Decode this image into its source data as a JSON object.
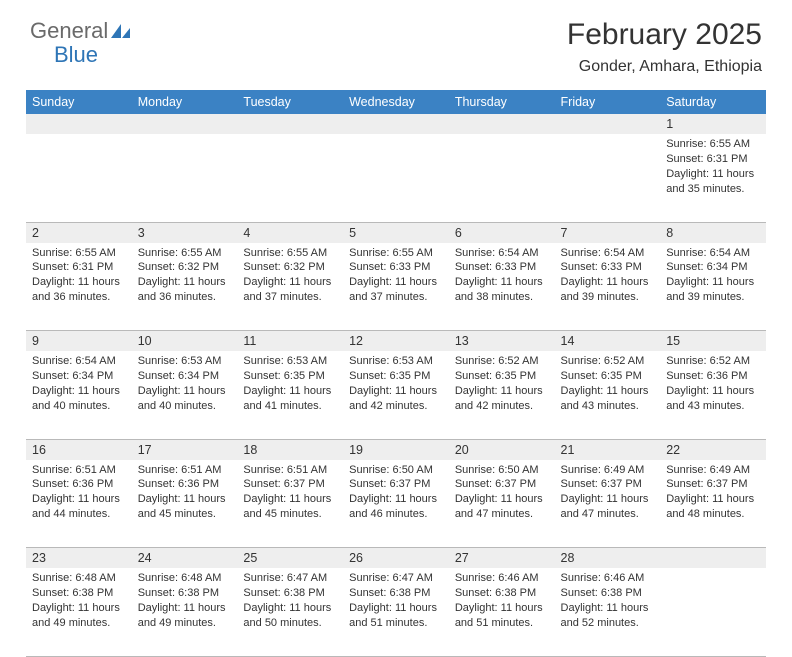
{
  "brand": {
    "word1": "General",
    "word2": "Blue",
    "accent_color": "#2e75b6",
    "text_color": "#6a6a6a"
  },
  "title": "February 2025",
  "location": "Gonder, Amhara, Ethiopia",
  "header_bg": "#3b82c4",
  "header_fg": "#ffffff",
  "daybar_bg": "#eeeeee",
  "rule_color": "#b9b9b9",
  "weekdays": [
    "Sunday",
    "Monday",
    "Tuesday",
    "Wednesday",
    "Thursday",
    "Friday",
    "Saturday"
  ],
  "weeks": [
    {
      "nums": [
        "",
        "",
        "",
        "",
        "",
        "",
        "1"
      ],
      "cells": [
        null,
        null,
        null,
        null,
        null,
        null,
        {
          "sunrise": "Sunrise: 6:55 AM",
          "sunset": "Sunset: 6:31 PM",
          "daylight": "Daylight: 11 hours and 35 minutes."
        }
      ]
    },
    {
      "nums": [
        "2",
        "3",
        "4",
        "5",
        "6",
        "7",
        "8"
      ],
      "cells": [
        {
          "sunrise": "Sunrise: 6:55 AM",
          "sunset": "Sunset: 6:31 PM",
          "daylight": "Daylight: 11 hours and 36 minutes."
        },
        {
          "sunrise": "Sunrise: 6:55 AM",
          "sunset": "Sunset: 6:32 PM",
          "daylight": "Daylight: 11 hours and 36 minutes."
        },
        {
          "sunrise": "Sunrise: 6:55 AM",
          "sunset": "Sunset: 6:32 PM",
          "daylight": "Daylight: 11 hours and 37 minutes."
        },
        {
          "sunrise": "Sunrise: 6:55 AM",
          "sunset": "Sunset: 6:33 PM",
          "daylight": "Daylight: 11 hours and 37 minutes."
        },
        {
          "sunrise": "Sunrise: 6:54 AM",
          "sunset": "Sunset: 6:33 PM",
          "daylight": "Daylight: 11 hours and 38 minutes."
        },
        {
          "sunrise": "Sunrise: 6:54 AM",
          "sunset": "Sunset: 6:33 PM",
          "daylight": "Daylight: 11 hours and 39 minutes."
        },
        {
          "sunrise": "Sunrise: 6:54 AM",
          "sunset": "Sunset: 6:34 PM",
          "daylight": "Daylight: 11 hours and 39 minutes."
        }
      ]
    },
    {
      "nums": [
        "9",
        "10",
        "11",
        "12",
        "13",
        "14",
        "15"
      ],
      "cells": [
        {
          "sunrise": "Sunrise: 6:54 AM",
          "sunset": "Sunset: 6:34 PM",
          "daylight": "Daylight: 11 hours and 40 minutes."
        },
        {
          "sunrise": "Sunrise: 6:53 AM",
          "sunset": "Sunset: 6:34 PM",
          "daylight": "Daylight: 11 hours and 40 minutes."
        },
        {
          "sunrise": "Sunrise: 6:53 AM",
          "sunset": "Sunset: 6:35 PM",
          "daylight": "Daylight: 11 hours and 41 minutes."
        },
        {
          "sunrise": "Sunrise: 6:53 AM",
          "sunset": "Sunset: 6:35 PM",
          "daylight": "Daylight: 11 hours and 42 minutes."
        },
        {
          "sunrise": "Sunrise: 6:52 AM",
          "sunset": "Sunset: 6:35 PM",
          "daylight": "Daylight: 11 hours and 42 minutes."
        },
        {
          "sunrise": "Sunrise: 6:52 AM",
          "sunset": "Sunset: 6:35 PM",
          "daylight": "Daylight: 11 hours and 43 minutes."
        },
        {
          "sunrise": "Sunrise: 6:52 AM",
          "sunset": "Sunset: 6:36 PM",
          "daylight": "Daylight: 11 hours and 43 minutes."
        }
      ]
    },
    {
      "nums": [
        "16",
        "17",
        "18",
        "19",
        "20",
        "21",
        "22"
      ],
      "cells": [
        {
          "sunrise": "Sunrise: 6:51 AM",
          "sunset": "Sunset: 6:36 PM",
          "daylight": "Daylight: 11 hours and 44 minutes."
        },
        {
          "sunrise": "Sunrise: 6:51 AM",
          "sunset": "Sunset: 6:36 PM",
          "daylight": "Daylight: 11 hours and 45 minutes."
        },
        {
          "sunrise": "Sunrise: 6:51 AM",
          "sunset": "Sunset: 6:37 PM",
          "daylight": "Daylight: 11 hours and 45 minutes."
        },
        {
          "sunrise": "Sunrise: 6:50 AM",
          "sunset": "Sunset: 6:37 PM",
          "daylight": "Daylight: 11 hours and 46 minutes."
        },
        {
          "sunrise": "Sunrise: 6:50 AM",
          "sunset": "Sunset: 6:37 PM",
          "daylight": "Daylight: 11 hours and 47 minutes."
        },
        {
          "sunrise": "Sunrise: 6:49 AM",
          "sunset": "Sunset: 6:37 PM",
          "daylight": "Daylight: 11 hours and 47 minutes."
        },
        {
          "sunrise": "Sunrise: 6:49 AM",
          "sunset": "Sunset: 6:37 PM",
          "daylight": "Daylight: 11 hours and 48 minutes."
        }
      ]
    },
    {
      "nums": [
        "23",
        "24",
        "25",
        "26",
        "27",
        "28",
        ""
      ],
      "cells": [
        {
          "sunrise": "Sunrise: 6:48 AM",
          "sunset": "Sunset: 6:38 PM",
          "daylight": "Daylight: 11 hours and 49 minutes."
        },
        {
          "sunrise": "Sunrise: 6:48 AM",
          "sunset": "Sunset: 6:38 PM",
          "daylight": "Daylight: 11 hours and 49 minutes."
        },
        {
          "sunrise": "Sunrise: 6:47 AM",
          "sunset": "Sunset: 6:38 PM",
          "daylight": "Daylight: 11 hours and 50 minutes."
        },
        {
          "sunrise": "Sunrise: 6:47 AM",
          "sunset": "Sunset: 6:38 PM",
          "daylight": "Daylight: 11 hours and 51 minutes."
        },
        {
          "sunrise": "Sunrise: 6:46 AM",
          "sunset": "Sunset: 6:38 PM",
          "daylight": "Daylight: 11 hours and 51 minutes."
        },
        {
          "sunrise": "Sunrise: 6:46 AM",
          "sunset": "Sunset: 6:38 PM",
          "daylight": "Daylight: 11 hours and 52 minutes."
        },
        null
      ]
    }
  ]
}
